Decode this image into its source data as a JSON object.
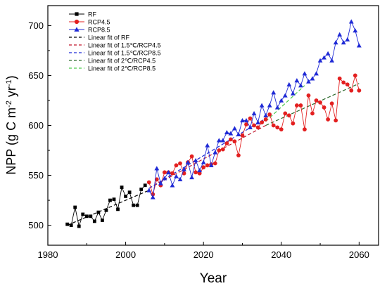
{
  "chart_data": {
    "type": "line",
    "xlabel": "Year",
    "ylabel_parts": {
      "pre": "NPP (g C m",
      "sup1": "-2",
      "mid": " yr",
      "sup2": "-1",
      "post": ")"
    },
    "xlim": [
      1980,
      2065
    ],
    "ylim": [
      480,
      720
    ],
    "xticks": [
      1980,
      2000,
      2020,
      2040,
      2060
    ],
    "yticks": [
      500,
      550,
      600,
      650,
      700
    ],
    "legend_position": "top-left",
    "series": [
      {
        "name": "RF",
        "color": "#000000",
        "marker": "square",
        "x": [
          1985,
          1986,
          1987,
          1988,
          1989,
          1990,
          1991,
          1992,
          1993,
          1994,
          1995,
          1996,
          1997,
          1998,
          1999,
          2000,
          2001,
          2002,
          2003,
          2004,
          2005
        ],
        "values": [
          501,
          500,
          518,
          499,
          511,
          509,
          509,
          504,
          513,
          505,
          515,
          525,
          526,
          516,
          538,
          529,
          533,
          520,
          520,
          536,
          540
        ]
      },
      {
        "name": "RCP4.5",
        "color": "#e32020",
        "marker": "circle",
        "x": [
          2006,
          2007,
          2008,
          2009,
          2010,
          2011,
          2012,
          2013,
          2014,
          2015,
          2016,
          2017,
          2018,
          2019,
          2020,
          2021,
          2022,
          2023,
          2024,
          2025,
          2026,
          2027,
          2028,
          2029,
          2030,
          2031,
          2032,
          2033,
          2034,
          2035,
          2036,
          2037,
          2038,
          2039,
          2040,
          2041,
          2042,
          2043,
          2044,
          2045,
          2046,
          2047,
          2048,
          2049,
          2050,
          2051,
          2052,
          2053,
          2054,
          2055,
          2056,
          2057,
          2058,
          2059,
          2060
        ],
        "values": [
          543,
          531,
          546,
          540,
          553,
          553,
          552,
          560,
          562,
          552,
          563,
          569,
          553,
          552,
          558,
          560,
          561,
          562,
          575,
          576,
          582,
          586,
          584,
          570,
          590,
          601,
          607,
          600,
          598,
          603,
          606,
          611,
          600,
          598,
          596,
          612,
          610,
          602,
          620,
          620,
          596,
          630,
          612,
          625,
          623,
          618,
          606,
          622,
          605,
          647,
          643,
          641,
          635,
          650,
          635
        ]
      },
      {
        "name": "RCP8.5",
        "color": "#1f2ad6",
        "marker": "triangle",
        "x": [
          2006,
          2007,
          2008,
          2009,
          2010,
          2011,
          2012,
          2013,
          2014,
          2015,
          2016,
          2017,
          2018,
          2019,
          2020,
          2021,
          2022,
          2023,
          2024,
          2025,
          2026,
          2027,
          2028,
          2029,
          2030,
          2031,
          2032,
          2033,
          2034,
          2035,
          2036,
          2037,
          2038,
          2039,
          2040,
          2041,
          2042,
          2043,
          2044,
          2045,
          2046,
          2047,
          2048,
          2049,
          2050,
          2051,
          2052,
          2053,
          2054,
          2055,
          2056,
          2057,
          2058,
          2059,
          2060
        ],
        "values": [
          535,
          528,
          557,
          542,
          547,
          553,
          540,
          549,
          546,
          556,
          563,
          548,
          565,
          555,
          563,
          580,
          560,
          573,
          585,
          585,
          593,
          592,
          597,
          591,
          605,
          605,
          598,
          612,
          603,
          620,
          610,
          620,
          633,
          618,
          625,
          630,
          641,
          632,
          645,
          640,
          652,
          644,
          647,
          652,
          665,
          668,
          672,
          665,
          683,
          691,
          683,
          686,
          704,
          695,
          680
        ]
      }
    ],
    "fits": [
      {
        "name": "Linear fit of RF",
        "color": "#000000",
        "x": [
          1985,
          2006
        ],
        "values": [
          500,
          535
        ]
      },
      {
        "name": "Linear fit of 1.5℃/RCP4.5",
        "color": "#c0152b",
        "x": [
          2006,
          2036
        ],
        "values": [
          537,
          600
        ]
      },
      {
        "name": "Linear fit of 1.5℃/RCP8.5",
        "color": "#1f2ad6",
        "x": [
          2006,
          2036
        ],
        "values": [
          537,
          607
        ]
      },
      {
        "name": "Linear fit of 2℃/RCP4.5",
        "color": "#2e6b2e",
        "x": [
          2036,
          2060
        ],
        "values": [
          600,
          642
        ]
      },
      {
        "name": "Linear fit of 2℃/RCP8.5",
        "color": "#4cc94c",
        "x": [
          2036,
          2046
        ],
        "values": [
          604,
          640
        ]
      }
    ]
  }
}
